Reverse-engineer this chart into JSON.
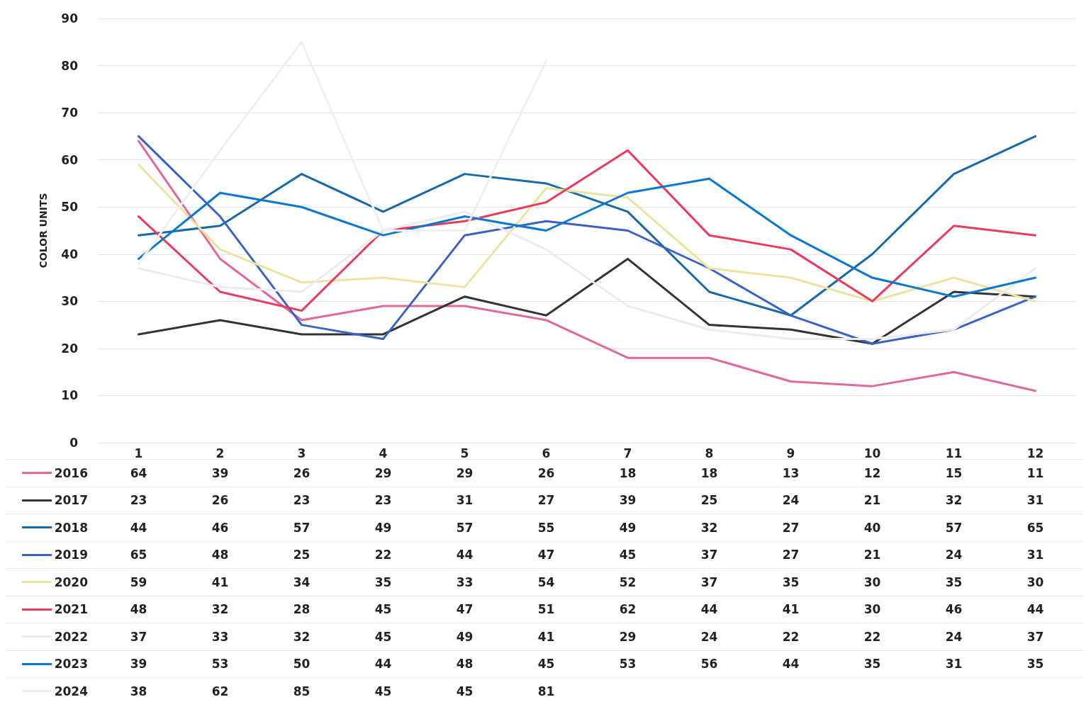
{
  "chart_data": {
    "type": "line",
    "ylabel": "COLOR UNITS",
    "categories": [
      "1",
      "2",
      "3",
      "4",
      "5",
      "6",
      "7",
      "8",
      "9",
      "10",
      "11",
      "12"
    ],
    "series": [
      {
        "name": "2016",
        "color": "#e0689a",
        "values": [
          64,
          39,
          26,
          29,
          29,
          26,
          18,
          18,
          13,
          12,
          15,
          11
        ]
      },
      {
        "name": "2017",
        "color": "#333333",
        "values": [
          23,
          26,
          23,
          23,
          31,
          27,
          39,
          25,
          24,
          21,
          32,
          31
        ]
      },
      {
        "name": "2018",
        "color": "#1769a8",
        "values": [
          44,
          46,
          57,
          49,
          57,
          55,
          49,
          32,
          27,
          40,
          57,
          65
        ]
      },
      {
        "name": "2019",
        "color": "#3a62c4",
        "values": [
          65,
          48,
          25,
          22,
          44,
          47,
          45,
          37,
          27,
          21,
          24,
          31
        ]
      },
      {
        "name": "2020",
        "color": "#ece3a0",
        "values": [
          59,
          41,
          34,
          35,
          33,
          54,
          52,
          37,
          35,
          30,
          35,
          30
        ]
      },
      {
        "name": "2021",
        "color": "#ea3a5e",
        "values": [
          48,
          32,
          28,
          45,
          47,
          51,
          62,
          44,
          41,
          30,
          46,
          44
        ]
      },
      {
        "name": "2022",
        "color": "#ececec",
        "values": [
          37,
          33,
          32,
          45,
          49,
          41,
          29,
          24,
          22,
          22,
          24,
          37
        ]
      },
      {
        "name": "2023",
        "color": "#0b78cf",
        "values": [
          39,
          53,
          50,
          44,
          48,
          45,
          53,
          56,
          44,
          35,
          31,
          35
        ]
      },
      {
        "name": "2024",
        "color": "#f0f0f0",
        "values": [
          38,
          62,
          85,
          45,
          45,
          81,
          null,
          null,
          null,
          null,
          null,
          null
        ]
      }
    ],
    "ylim": [
      0,
      90
    ],
    "yticks": [
      0,
      10,
      20,
      30,
      40,
      50,
      60,
      70,
      80,
      90
    ],
    "grid": "y",
    "legend": "bottom",
    "data_labels": true,
    "marker": "none",
    "line_style": "solid"
  }
}
